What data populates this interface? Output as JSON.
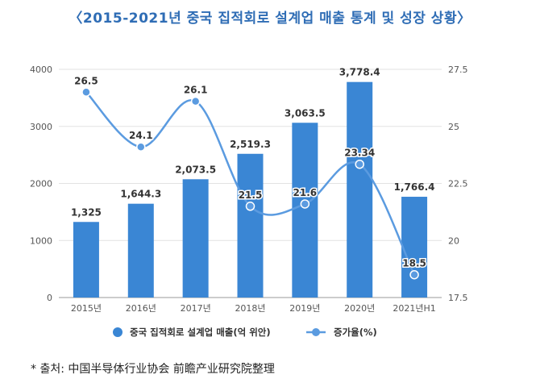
{
  "header": {
    "title": "〈2015-2021년 중국 집적회로 설계업 매출 통계 및 성장 상황〉"
  },
  "footer": {
    "source": "* 출처: 中国半导体行业协会 前瞻产业研究院整理"
  },
  "chart_data": {
    "type": "bar",
    "title": "〈2015-2021년 중국 집적회로 설계업 매출 통계 및 성장 상황〉",
    "categories": [
      "2015년",
      "2016년",
      "2017년",
      "2018년",
      "2019년",
      "2020년",
      "2021년H1"
    ],
    "bar_series": {
      "name": "중국 집적회로 설계업 매출(억 위안)",
      "values": [
        1325,
        1644.3,
        2073.5,
        2519.3,
        3063.5,
        3778.4,
        1766.4
      ],
      "labels": [
        "1,325",
        "1,644.3",
        "2,073.5",
        "2,519.3",
        "3,063.5",
        "3,778.4",
        "1,766.4"
      ],
      "color": "#3a86d4"
    },
    "line_series": {
      "name": "증가율(%)",
      "values": [
        26.5,
        24.1,
        26.1,
        21.5,
        21.6,
        23.34,
        18.5
      ],
      "labels": [
        "26.5",
        "24.1",
        "26.1",
        "21.5",
        "21.6",
        "23.34",
        "18.5"
      ],
      "color": "#5b9be0"
    },
    "y_left": {
      "min": 0,
      "max": 4000,
      "ticks": [
        0,
        1000,
        2000,
        3000,
        4000
      ],
      "tick_labels": [
        "0",
        "1000",
        "2000",
        "3000",
        "4000"
      ]
    },
    "y_right": {
      "min": 17.5,
      "max": 27.5,
      "ticks": [
        17.5,
        20,
        22.5,
        25,
        27.5
      ],
      "tick_labels": [
        "17.5",
        "20",
        "22.5",
        "25",
        "27.5"
      ]
    },
    "grid": true,
    "legend_position": "bottom"
  }
}
